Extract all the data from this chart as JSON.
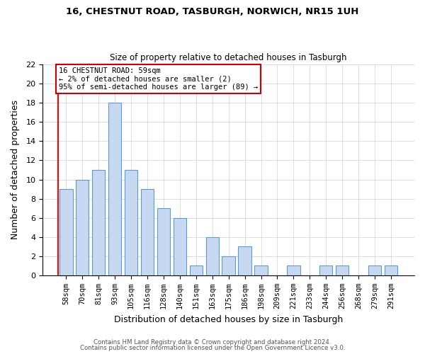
{
  "title1": "16, CHESTNUT ROAD, TASBURGH, NORWICH, NR15 1UH",
  "title2": "Size of property relative to detached houses in Tasburgh",
  "xlabel": "Distribution of detached houses by size in Tasburgh",
  "ylabel": "Number of detached properties",
  "bar_labels": [
    "58sqm",
    "70sqm",
    "81sqm",
    "93sqm",
    "105sqm",
    "116sqm",
    "128sqm",
    "140sqm",
    "151sqm",
    "163sqm",
    "175sqm",
    "186sqm",
    "198sqm",
    "209sqm",
    "221sqm",
    "233sqm",
    "244sqm",
    "256sqm",
    "268sqm",
    "279sqm",
    "291sqm"
  ],
  "bar_values": [
    9,
    10,
    11,
    18,
    11,
    9,
    7,
    6,
    1,
    4,
    2,
    3,
    1,
    0,
    1,
    0,
    1,
    1,
    0,
    1,
    1
  ],
  "bar_color": "#c6d9f0",
  "bar_edge_color": "#5b9bd5",
  "annotation_title": "16 CHESTNUT ROAD: 59sqm",
  "annotation_line1": "← 2% of detached houses are smaller (2)",
  "annotation_line2": "95% of semi-detached houses are larger (89) →",
  "annotation_box_color": "#ffffff",
  "annotation_box_edge": "#cc0000",
  "ylim": [
    0,
    22
  ],
  "yticks": [
    0,
    2,
    4,
    6,
    8,
    10,
    12,
    14,
    16,
    18,
    20,
    22
  ],
  "footer1": "Contains HM Land Registry data © Crown copyright and database right 2024.",
  "footer2": "Contains public sector information licensed under the Open Government Licence v3.0.",
  "fig_width": 6.0,
  "fig_height": 5.0,
  "dpi": 100
}
